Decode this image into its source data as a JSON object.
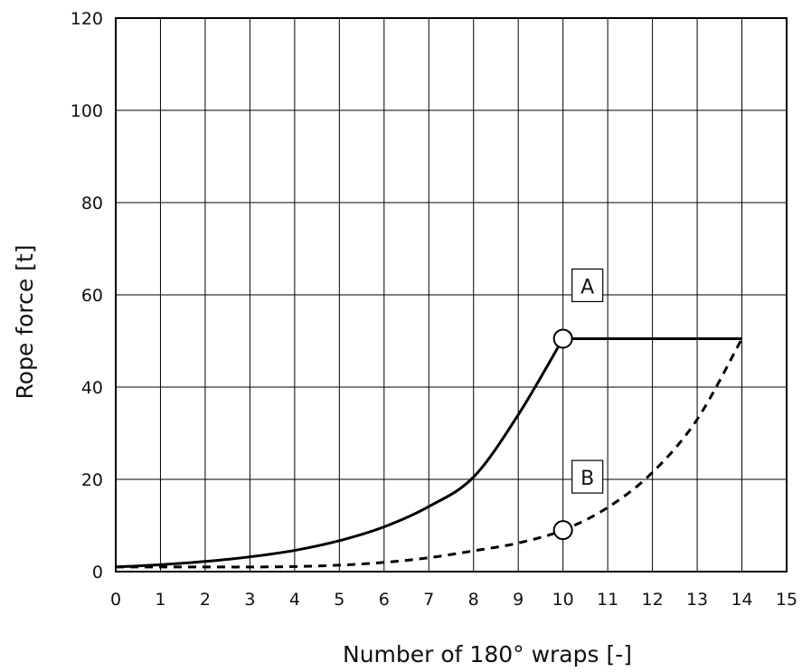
{
  "chart_data": {
    "type": "line",
    "title": "",
    "xlabel": "Number of 180° wraps [-]",
    "ylabel": "Rope force [t]",
    "xlim": [
      0,
      15
    ],
    "ylim": [
      0,
      120
    ],
    "x_ticks": [
      "0",
      "1",
      "2",
      "3",
      "4",
      "5",
      "6",
      "7",
      "8",
      "9",
      "10",
      "11",
      "12",
      "13",
      "14",
      "15"
    ],
    "y_ticks": [
      "0",
      "20",
      "40",
      "60",
      "80",
      "100",
      "120"
    ],
    "grid": true,
    "series": [
      {
        "style": "solid",
        "color": "#000000",
        "x": [
          0,
          1,
          2,
          3,
          4,
          5,
          6,
          7,
          8,
          9,
          10,
          11,
          12,
          13,
          14
        ],
        "y": [
          1,
          1.5,
          2.2,
          3.2,
          4.6,
          6.7,
          9.7,
          14.1,
          20.5,
          34,
          50.5,
          50.5,
          50.5,
          50.5,
          50.5
        ]
      },
      {
        "style": "dashed",
        "color": "#000000",
        "x": [
          0,
          1,
          2,
          3,
          4,
          5,
          6,
          7,
          8,
          9,
          10,
          11,
          12,
          13,
          14
        ],
        "y": [
          1,
          1,
          1,
          1,
          1.1,
          1.4,
          2.0,
          3.0,
          4.5,
          6.2,
          9,
          13.9,
          21.5,
          33,
          50.5
        ]
      }
    ],
    "annotations": [
      {
        "label": "A",
        "x": 10,
        "y": 50.5
      },
      {
        "label": "B",
        "x": 10,
        "y": 9
      }
    ]
  }
}
